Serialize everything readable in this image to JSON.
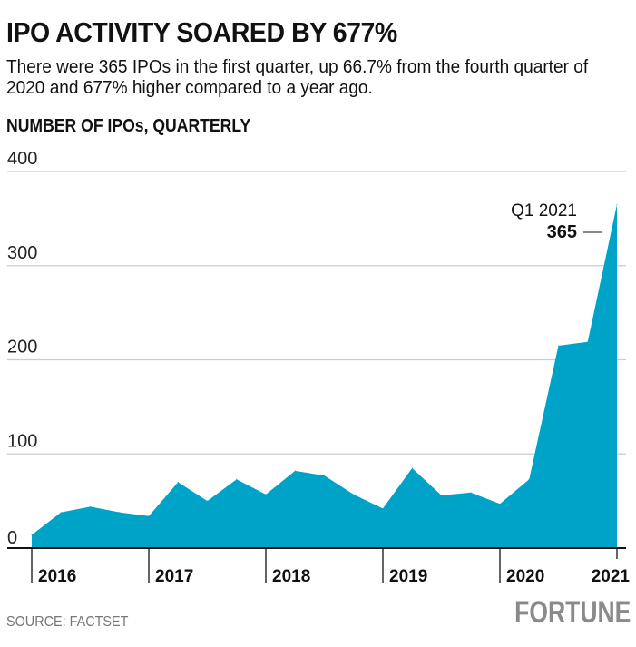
{
  "title": "IPO ACTIVITY SOARED BY 677%",
  "subtitle": "There were 365 IPOs in the first quarter, up 66.7% from the fourth quarter of 2020 and 677% higher compared to a year ago.",
  "source": "SOURCE: FACTSET",
  "logo": "FORTUNE",
  "colors": {
    "area": "#00A3C8",
    "grid": "#cccccc",
    "axis": "#111111"
  },
  "chart_data": {
    "type": "area",
    "title": "IPO ACTIVITY SOARED BY 677%",
    "ylabel": "NUMBER OF IPOs, QUARTERLY",
    "xlabel": "",
    "x": [
      "Q1 2016",
      "Q2 2016",
      "Q3 2016",
      "Q4 2016",
      "Q1 2017",
      "Q2 2017",
      "Q3 2017",
      "Q4 2017",
      "Q1 2018",
      "Q2 2018",
      "Q3 2018",
      "Q4 2018",
      "Q1 2019",
      "Q2 2019",
      "Q3 2019",
      "Q4 2019",
      "Q1 2020",
      "Q2 2020",
      "Q3 2020",
      "Q4 2020",
      "Q1 2021"
    ],
    "values": [
      14,
      38,
      44,
      38,
      34,
      70,
      50,
      73,
      57,
      82,
      77,
      57,
      42,
      85,
      56,
      59,
      47,
      73,
      215,
      219,
      365
    ],
    "ylim": [
      0,
      400
    ],
    "yticks": [
      "0",
      "100",
      "200",
      "300",
      "400"
    ],
    "xticks": [
      "2016",
      "2017",
      "2018",
      "2019",
      "2020",
      "2021"
    ],
    "grid": true,
    "annotation": {
      "label": "Q1 2021",
      "value": "365"
    }
  }
}
